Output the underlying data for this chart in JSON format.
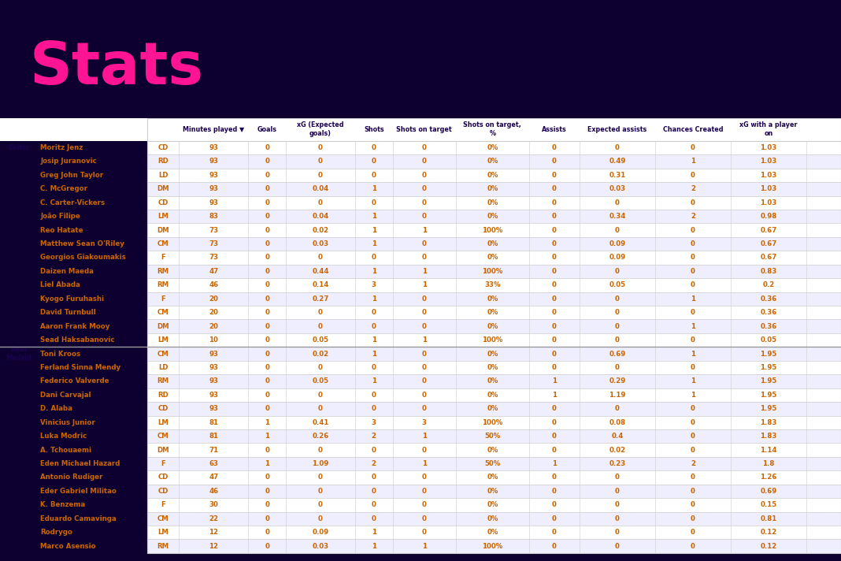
{
  "title": "Stats",
  "bg_color": "#0d0030",
  "title_color": "#ff1493",
  "table_bg": "#ffffff",
  "col_headers": [
    "Minutes played",
    "Goals",
    "xG (Expected\ngoals)",
    "Shots",
    "Shots on target",
    "Shots on target,\n%",
    "Assists",
    "Expected assists",
    "Chances Created",
    "xG with a player\non"
  ],
  "rows": [
    [
      "Celtic",
      "Moritz Jenz",
      "CD",
      "93",
      "0",
      "0",
      "0",
      "0",
      "0%",
      "0",
      "0",
      "0",
      "1.03"
    ],
    [
      "",
      "Josip Juranovic",
      "RD",
      "93",
      "0",
      "0",
      "0",
      "0",
      "0%",
      "0",
      "0.49",
      "1",
      "1.03"
    ],
    [
      "",
      "Greg John Taylor",
      "LD",
      "93",
      "0",
      "0",
      "0",
      "0",
      "0%",
      "0",
      "0.31",
      "0",
      "1.03"
    ],
    [
      "",
      "C. McGregor",
      "DM",
      "93",
      "0",
      "0.04",
      "1",
      "0",
      "0%",
      "0",
      "0.03",
      "2",
      "1.03"
    ],
    [
      "",
      "C. Carter-Vickers",
      "CD",
      "93",
      "0",
      "0",
      "0",
      "0",
      "0%",
      "0",
      "0",
      "0",
      "1.03"
    ],
    [
      "",
      "João Filipe",
      "LM",
      "83",
      "0",
      "0.04",
      "1",
      "0",
      "0%",
      "0",
      "0.34",
      "2",
      "0.98"
    ],
    [
      "",
      "Reo Hatate",
      "DM",
      "73",
      "0",
      "0.02",
      "1",
      "1",
      "100%",
      "0",
      "0",
      "0",
      "0.67"
    ],
    [
      "",
      "Matthew Sean O'Riley",
      "CM",
      "73",
      "0",
      "0.03",
      "1",
      "0",
      "0%",
      "0",
      "0.09",
      "0",
      "0.67"
    ],
    [
      "",
      "Georgios Giakoumakis",
      "F",
      "73",
      "0",
      "0",
      "0",
      "0",
      "0%",
      "0",
      "0.09",
      "0",
      "0.67"
    ],
    [
      "",
      "Daizen Maeda",
      "RM",
      "47",
      "0",
      "0.44",
      "1",
      "1",
      "100%",
      "0",
      "0",
      "0",
      "0.83"
    ],
    [
      "",
      "Liel Abada",
      "RM",
      "46",
      "0",
      "0.14",
      "3",
      "1",
      "33%",
      "0",
      "0.05",
      "0",
      "0.2"
    ],
    [
      "",
      "Kyogo Furuhashi",
      "F",
      "20",
      "0",
      "0.27",
      "1",
      "0",
      "0%",
      "0",
      "0",
      "1",
      "0.36"
    ],
    [
      "",
      "David Turnbull",
      "CM",
      "20",
      "0",
      "0",
      "0",
      "0",
      "0%",
      "0",
      "0",
      "0",
      "0.36"
    ],
    [
      "",
      "Aaron Frank Mooy",
      "DM",
      "20",
      "0",
      "0",
      "0",
      "0",
      "0%",
      "0",
      "0",
      "1",
      "0.36"
    ],
    [
      "",
      "Sead Haksabanovic",
      "LM",
      "10",
      "0",
      "0.05",
      "1",
      "1",
      "100%",
      "0",
      "0",
      "0",
      "0.05"
    ],
    [
      "Real\nMadrid",
      "Toni Kroos",
      "CM",
      "93",
      "0",
      "0.02",
      "1",
      "0",
      "0%",
      "0",
      "0.69",
      "1",
      "1.95"
    ],
    [
      "",
      "Ferland Sinna Mendy",
      "LD",
      "93",
      "0",
      "0",
      "0",
      "0",
      "0%",
      "0",
      "0",
      "0",
      "1.95"
    ],
    [
      "",
      "Federico Valverde",
      "RM",
      "93",
      "0",
      "0.05",
      "1",
      "0",
      "0%",
      "1",
      "0.29",
      "1",
      "1.95"
    ],
    [
      "",
      "Dani Carvajal",
      "RD",
      "93",
      "0",
      "0",
      "0",
      "0",
      "0%",
      "1",
      "1.19",
      "1",
      "1.95"
    ],
    [
      "",
      "D. Alaba",
      "CD",
      "93",
      "0",
      "0",
      "0",
      "0",
      "0%",
      "0",
      "0",
      "0",
      "1.95"
    ],
    [
      "",
      "Vinicius Junior",
      "LM",
      "81",
      "1",
      "0.41",
      "3",
      "3",
      "100%",
      "0",
      "0.08",
      "0",
      "1.83"
    ],
    [
      "",
      "Luka Modric",
      "CM",
      "81",
      "1",
      "0.26",
      "2",
      "1",
      "50%",
      "0",
      "0.4",
      "0",
      "1.83"
    ],
    [
      "",
      "A. Tchouaemi",
      "DM",
      "71",
      "0",
      "0",
      "0",
      "0",
      "0%",
      "0",
      "0.02",
      "0",
      "1.14"
    ],
    [
      "",
      "Eden Michael Hazard",
      "F",
      "63",
      "1",
      "1.09",
      "2",
      "1",
      "50%",
      "1",
      "0.23",
      "2",
      "1.8"
    ],
    [
      "",
      "Antonio Rudiger",
      "CD",
      "47",
      "0",
      "0",
      "0",
      "0",
      "0%",
      "0",
      "0",
      "0",
      "1.26"
    ],
    [
      "",
      "Eder Gabriel Militao",
      "CD",
      "46",
      "0",
      "0",
      "0",
      "0",
      "0%",
      "0",
      "0",
      "0",
      "0.69"
    ],
    [
      "",
      "K. Benzema",
      "F",
      "30",
      "0",
      "0",
      "0",
      "0",
      "0%",
      "0",
      "0",
      "0",
      "0.15"
    ],
    [
      "",
      "Eduardo Camavinga",
      "CM",
      "22",
      "0",
      "0",
      "0",
      "0",
      "0%",
      "0",
      "0",
      "0",
      "0.81"
    ],
    [
      "",
      "Rodrygo",
      "LM",
      "12",
      "0",
      "0.09",
      "1",
      "0",
      "0%",
      "0",
      "0",
      "0",
      "0.12"
    ],
    [
      "",
      "Marco Asensio",
      "RM",
      "12",
      "0",
      "0.03",
      "1",
      "1",
      "100%",
      "0",
      "0",
      "0",
      "0.12"
    ]
  ],
  "row_odd_color": "#eeeeff",
  "row_even_color": "#ffffff",
  "text_color_dark": "#1a0050",
  "text_color_header": "#1a0050",
  "data_text_color": "#cc6600",
  "player_text_color": "#cc6600",
  "divider_color": "#cccccc",
  "team_divider_color": "#999999",
  "header_filter_icon": "▼"
}
